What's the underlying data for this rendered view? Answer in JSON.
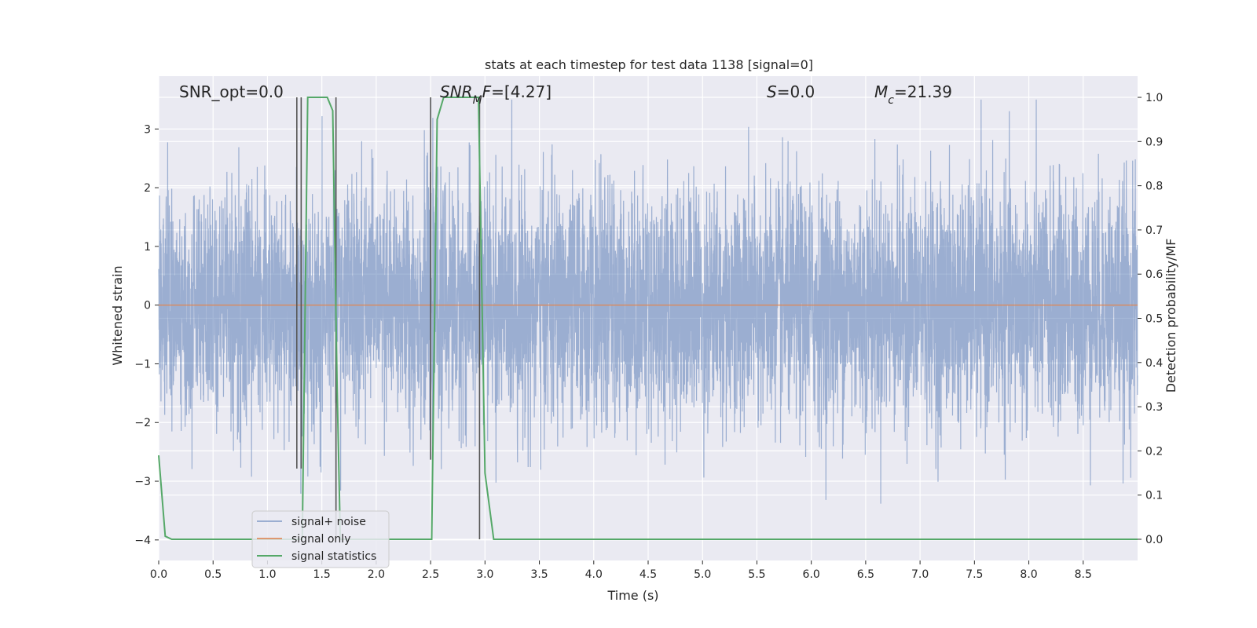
{
  "chart_data": {
    "type": "line",
    "title": "stats at each timestep for test data 1138 [signal=0]",
    "xlabel": "Time (s)",
    "ylabel": "Whitened strain",
    "y2label": "Detection probability/MF",
    "xlim": [
      0.0,
      9.0
    ],
    "ylim": [
      -4.35,
      3.9
    ],
    "y2lim": [
      -0.048,
      1.048
    ],
    "xticks": [
      "0.0",
      "0.5",
      "1.0",
      "1.5",
      "2.0",
      "2.5",
      "3.0",
      "3.5",
      "4.0",
      "4.5",
      "5.0",
      "5.5",
      "6.0",
      "6.5",
      "7.0",
      "7.5",
      "8.0",
      "8.5"
    ],
    "yticks": [
      "3",
      "2",
      "1",
      "0",
      "−1",
      "−2",
      "−3",
      "−4"
    ],
    "y2ticks": [
      "1.0",
      "0.9",
      "0.8",
      "0.7",
      "0.6",
      "0.5",
      "0.4",
      "0.3",
      "0.2",
      "0.1",
      "0.0"
    ],
    "grid": true,
    "legend_position": "lower-left",
    "colors": {
      "background": "#eaeaf2",
      "noise": "#4c72b0",
      "signal": "#dd8452",
      "stats": "#55a868",
      "markers": "#555555"
    },
    "annotations": [
      {
        "id": "snr-opt",
        "parts": [
          {
            "t": "SNR_opt=0.0"
          }
        ]
      },
      {
        "id": "snr-mf",
        "parts": [
          {
            "t": "SNR",
            "i": true
          },
          {
            "t": "M",
            "i": true,
            "sub": true
          },
          {
            "t": "F",
            "i": true
          },
          {
            "t": "=[4.27]"
          }
        ]
      },
      {
        "id": "s-stat",
        "parts": [
          {
            "t": "S",
            "i": true
          },
          {
            "t": "=0.0"
          }
        ]
      },
      {
        "id": "mc",
        "parts": [
          {
            "t": "M",
            "i": true
          },
          {
            "t": "c",
            "i": true,
            "sub": true
          },
          {
            "t": "=21.39"
          }
        ]
      }
    ],
    "series": [
      {
        "name": "signal+ noise",
        "kind": "noise",
        "description": "whitened strain noise, amplitude roughly within [-4, 3.5]",
        "typical_range": [
          -1.8,
          1.9
        ],
        "extreme_range": [
          -4.0,
          3.5
        ]
      },
      {
        "name": "signal only",
        "kind": "signal",
        "x": [
          0.0,
          9.0
        ],
        "y": [
          0.0,
          0.0
        ]
      },
      {
        "name": "signal statistics",
        "kind": "stats",
        "x": [
          0.0,
          0.06,
          0.12,
          1.28,
          1.32,
          1.37,
          1.45,
          1.55,
          1.6,
          1.64,
          1.67,
          1.8,
          2.49,
          2.51,
          2.56,
          2.62,
          2.75,
          2.9,
          2.94,
          3.0,
          3.08,
          9.0
        ],
        "y": [
          0.19,
          0.007,
          0.0,
          0.0,
          0.0,
          1.0,
          1.0,
          1.0,
          0.97,
          0.35,
          0.0,
          0.0,
          0.0,
          0.0,
          0.95,
          1.0,
          1.0,
          1.0,
          1.0,
          0.15,
          0.0,
          0.0
        ]
      }
    ],
    "markers_x": [
      1.27,
      1.31,
      1.63,
      2.5,
      2.95
    ],
    "markers_y2": [
      1.0,
      1.0,
      1.0,
      1.0,
      1.0
    ],
    "markers_bottom_y2": [
      0.16,
      0.16,
      0.0,
      0.18,
      0.0
    ]
  }
}
